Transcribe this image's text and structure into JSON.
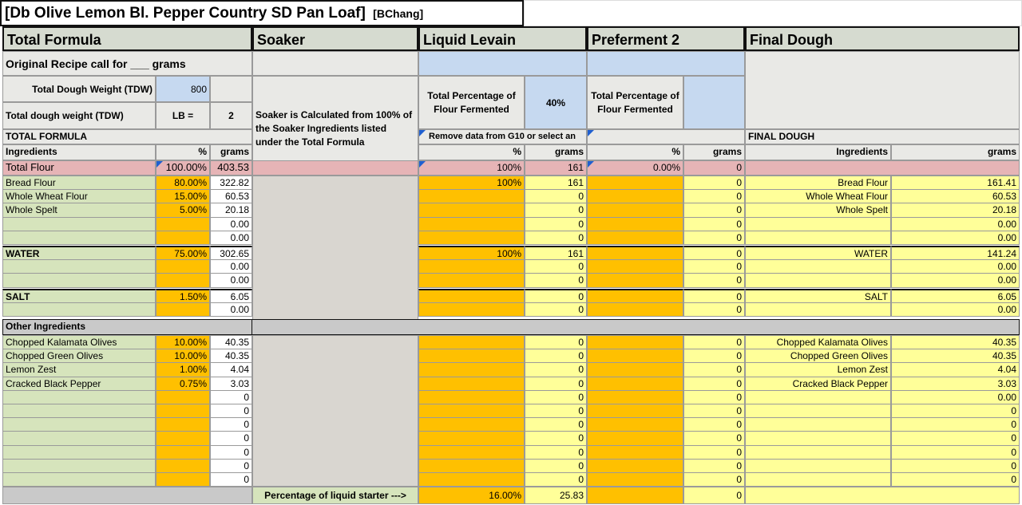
{
  "title": "[Db Olive Lemon Bl. Pepper Country SD Pan Loaf]",
  "author": "[BChang]",
  "sections": {
    "total_formula": "Total Formula",
    "soaker": "Soaker",
    "liquid_levain": "Liquid Levain",
    "preferment2": "Preferment 2",
    "final_dough": "Final Dough"
  },
  "recipe_call": "Original Recipe call for ___ grams",
  "tdw_label": "Total Dough Weight (TDW)",
  "tdw_value": "800",
  "tdw_lb_label": "Total dough weight (TDW)",
  "lb_label": "LB =",
  "lb_value": "2",
  "soaker_note": "Soaker is Calculated from 100% of the Soaker Ingredients listed under the Total Formula",
  "levain_pct_label": "Total Percentage of Flour Fermented",
  "levain_pct_value": "40%",
  "pref_pct_label": "Total Percentage of Flour Fermented",
  "levain_note": "Remove data from G10 or select an",
  "total_formula_caps": "TOTAL FORMULA",
  "final_dough_caps": "FINAL DOUGH",
  "col_ingredients": "Ingredients",
  "col_pct": "%",
  "col_grams": "grams",
  "total_flour": {
    "name": "Total Flour",
    "pct": "100.00%",
    "grams": "403.53",
    "lev_pct": "100%",
    "lev_grams": "161",
    "pref_pct": "0.00%",
    "pref_grams": "0"
  },
  "flours": [
    {
      "name": "Bread Flour",
      "pct": "80.00%",
      "grams": "322.82",
      "lev_pct": "100%",
      "lev_grams": "161",
      "pref": "0",
      "fd_name": "Bread Flour",
      "fd_grams": "161.41"
    },
    {
      "name": "Whole Wheat Flour",
      "pct": "15.00%",
      "grams": "60.53",
      "lev_pct": "",
      "lev_grams": "0",
      "pref": "0",
      "fd_name": "Whole Wheat Flour",
      "fd_grams": "60.53"
    },
    {
      "name": "Whole Spelt",
      "pct": "5.00%",
      "grams": "20.18",
      "lev_pct": "",
      "lev_grams": "0",
      "pref": "0",
      "fd_name": "Whole Spelt",
      "fd_grams": "20.18"
    },
    {
      "name": "",
      "pct": "",
      "grams": "0.00",
      "lev_pct": "",
      "lev_grams": "0",
      "pref": "0",
      "fd_name": "",
      "fd_grams": "0.00"
    },
    {
      "name": "",
      "pct": "",
      "grams": "0.00",
      "lev_pct": "",
      "lev_grams": "0",
      "pref": "0",
      "fd_name": "",
      "fd_grams": "0.00"
    }
  ],
  "water": [
    {
      "name": "WATER",
      "pct": "75.00%",
      "grams": "302.65",
      "lev_pct": "100%",
      "lev_grams": "161",
      "pref": "0",
      "fd_name": "WATER",
      "fd_grams": "141.24"
    },
    {
      "name": "",
      "pct": "",
      "grams": "0.00",
      "lev_pct": "",
      "lev_grams": "0",
      "pref": "0",
      "fd_name": "",
      "fd_grams": "0.00"
    },
    {
      "name": "",
      "pct": "",
      "grams": "0.00",
      "lev_pct": "",
      "lev_grams": "0",
      "pref": "0",
      "fd_name": "",
      "fd_grams": "0.00"
    }
  ],
  "salt": [
    {
      "name": "SALT",
      "pct": "1.50%",
      "grams": "6.05",
      "lev_pct": "",
      "lev_grams": "0",
      "pref": "0",
      "fd_name": "SALT",
      "fd_grams": "6.05"
    },
    {
      "name": "",
      "pct": "",
      "grams": "0.00",
      "lev_pct": "",
      "lev_grams": "0",
      "pref": "0",
      "fd_name": "",
      "fd_grams": "0.00"
    }
  ],
  "other_label": "Other Ingredients",
  "others": [
    {
      "name": "Chopped Kalamata Olives",
      "pct": "10.00%",
      "grams": "40.35",
      "lev_grams": "0",
      "pref": "0",
      "fd_name": "Chopped Kalamata Olives",
      "fd_grams": "40.35"
    },
    {
      "name": "Chopped Green Olives",
      "pct": "10.00%",
      "grams": "40.35",
      "lev_grams": "0",
      "pref": "0",
      "fd_name": "Chopped Green Olives",
      "fd_grams": "40.35"
    },
    {
      "name": "Lemon Zest",
      "pct": "1.00%",
      "grams": "4.04",
      "lev_grams": "0",
      "pref": "0",
      "fd_name": "Lemon Zest",
      "fd_grams": "4.04"
    },
    {
      "name": "Cracked Black Pepper",
      "pct": "0.75%",
      "grams": "3.03",
      "lev_grams": "0",
      "pref": "0",
      "fd_name": "Cracked Black Pepper",
      "fd_grams": "3.03"
    },
    {
      "name": "",
      "pct": "",
      "grams": "0",
      "lev_grams": "0",
      "pref": "0",
      "fd_name": "",
      "fd_grams": "0.00"
    },
    {
      "name": "",
      "pct": "",
      "grams": "0",
      "lev_grams": "0",
      "pref": "0",
      "fd_name": "",
      "fd_grams": "0"
    },
    {
      "name": "",
      "pct": "",
      "grams": "0",
      "lev_grams": "0",
      "pref": "0",
      "fd_name": "",
      "fd_grams": "0"
    },
    {
      "name": "",
      "pct": "",
      "grams": "0",
      "lev_grams": "0",
      "pref": "0",
      "fd_name": "",
      "fd_grams": "0"
    },
    {
      "name": "",
      "pct": "",
      "grams": "0",
      "lev_grams": "0",
      "pref": "0",
      "fd_name": "",
      "fd_grams": "0"
    },
    {
      "name": "",
      "pct": "",
      "grams": "0",
      "lev_grams": "0",
      "pref": "0",
      "fd_name": "",
      "fd_grams": "0"
    },
    {
      "name": "",
      "pct": "",
      "grams": "0",
      "lev_grams": "0",
      "pref": "0",
      "fd_name": "",
      "fd_grams": "0"
    }
  ],
  "liquid_starter_label": "Percentage of liquid starter --->",
  "liquid_starter_pct": "16.00%",
  "liquid_starter_grams": "25.83",
  "liquid_starter_pref": "0",
  "colors": {
    "orange": "#ffc000",
    "yellow": "#ffff99",
    "green": "#d6e4bc",
    "pink": "#e6b4b6",
    "blue": "#c6d9f0",
    "grey": "#c9c9c9"
  }
}
